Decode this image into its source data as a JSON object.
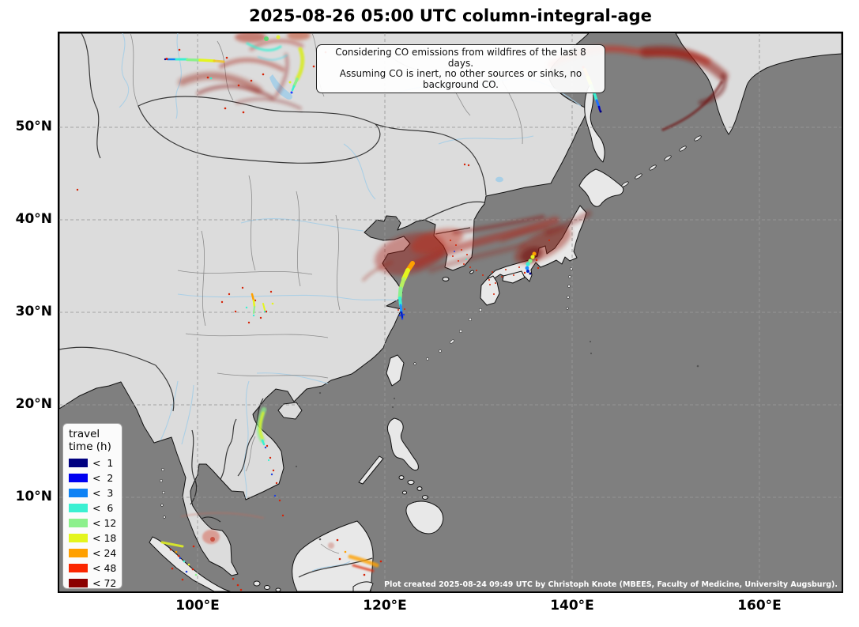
{
  "title": "2025-08-26 05:00 UTC column-integral-age",
  "annotation": {
    "line1": "Considering CO emissions from wildfires of the last 8 days.",
    "line2": "Assuming CO is inert, no other sources or sinks, no background CO."
  },
  "legend": {
    "title_lines": [
      "travel",
      "time (h)"
    ],
    "entries": [
      {
        "label": "<  1",
        "color": "#000080"
      },
      {
        "label": "<  2",
        "color": "#0000f0"
      },
      {
        "label": "<  3",
        "color": "#0e82f5"
      },
      {
        "label": "<  6",
        "color": "#3af0d2"
      },
      {
        "label": "< 12",
        "color": "#8cf08c"
      },
      {
        "label": "< 18",
        "color": "#e4f51e"
      },
      {
        "label": "< 24",
        "color": "#ffa000"
      },
      {
        "label": "< 48",
        "color": "#fb2600"
      },
      {
        "label": "< 72",
        "color": "#8b0000"
      }
    ]
  },
  "axes": {
    "lat_ticks": [
      "50°N",
      "40°N",
      "30°N",
      "20°N",
      "10°N"
    ],
    "lon_ticks": [
      "100°E",
      "120°E",
      "140°E",
      "160°E"
    ]
  },
  "credit": "Plot created 2025-08-24 09:49 UTC by Christoph Knote (MBEES, Faculty of Medicine, University Augsburg).",
  "map": {
    "ocean_color": "#7f7f7f",
    "land_color": "#dcdcdc",
    "river_color": "#a9cfe6",
    "grid_color": "#999999"
  }
}
